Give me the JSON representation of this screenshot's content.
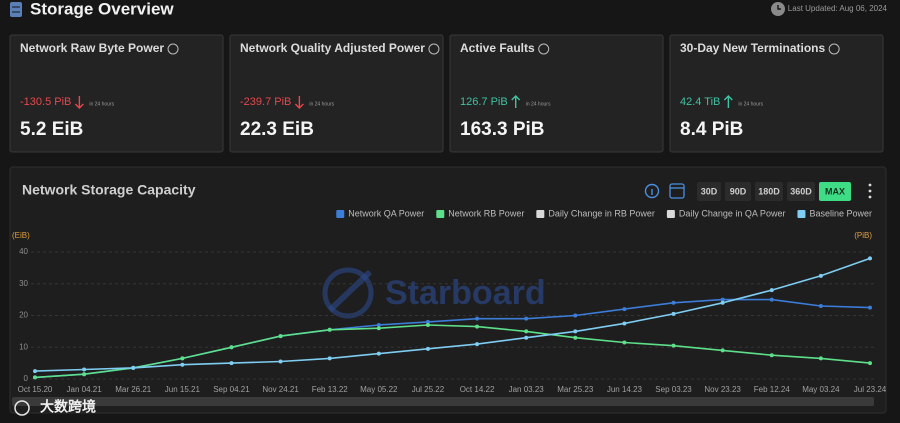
{
  "header": {
    "title": "Storage Overview",
    "last_updated": "Last Updated: Aug 06, 2024"
  },
  "cards": [
    {
      "title": "Network Raw Byte Power",
      "change": "-130.5 PiB",
      "direction": "down",
      "change_note": "in 24 hours",
      "value": "5.2 EiB"
    },
    {
      "title": "Network Quality Adjusted Power",
      "change": "-239.7 PiB",
      "direction": "down",
      "change_note": "in 24 hours",
      "value": "22.3 EiB"
    },
    {
      "title": "Active Faults",
      "change": "126.7 PiB",
      "direction": "up",
      "change_note": "in 24 hours",
      "value": "163.3 PiB"
    },
    {
      "title": "30-Day New Terminations",
      "change": "42.4 TiB",
      "direction": "up",
      "change_note": "in 24 hours",
      "value": "8.4 PiB"
    }
  ],
  "chart_data": {
    "type": "line",
    "title": "Network Storage Capacity",
    "range_buttons": [
      "30D",
      "90D",
      "180D",
      "360D",
      "MAX"
    ],
    "active_range": "MAX",
    "y_label": "(EiB)",
    "y2_label": "(PiB)",
    "watermark": "Starboard",
    "categories": [
      "Oct 15.20",
      "Jan 04.21",
      "Mar 26.21",
      "Jun 15.21",
      "Sep 04.21",
      "Nov 24.21",
      "Feb 13.22",
      "May 05.22",
      "Jul 25.22",
      "Oct 14.22",
      "Jan 03.23",
      "Mar 25.23",
      "Jun 14.23",
      "Sep 03.23",
      "Nov 23.23",
      "Feb 12.24",
      "May 03.24",
      "Jul 23.24"
    ],
    "series": [
      {
        "name": "Network QA Power",
        "color": "#3b7dd8",
        "values": [
          0.5,
          1.5,
          3.5,
          6.5,
          10,
          13.5,
          15.5,
          17,
          18,
          19,
          19,
          20,
          22,
          24,
          25,
          25,
          23,
          22.5
        ]
      },
      {
        "name": "Network RB Power",
        "color": "#5ee08a",
        "values": [
          0.5,
          1.5,
          3.5,
          6.5,
          10,
          13.5,
          15.5,
          16,
          17,
          16.5,
          15,
          13,
          11.5,
          10.5,
          9,
          7.5,
          6.5,
          5
        ]
      },
      {
        "name": "Daily Change in RB Power",
        "color": "#d9d9d9",
        "values": [
          null,
          null,
          null,
          null,
          null,
          null,
          null,
          null,
          null,
          null,
          null,
          null,
          null,
          null,
          null,
          null,
          null,
          null
        ]
      },
      {
        "name": "Daily Change in QA Power",
        "color": "#d9d9d9",
        "values": [
          null,
          null,
          null,
          null,
          null,
          null,
          null,
          null,
          null,
          null,
          null,
          null,
          null,
          null,
          null,
          null,
          null,
          null
        ]
      },
      {
        "name": "Baseline Power",
        "color": "#7fcdf2",
        "values": [
          2.5,
          3,
          3.5,
          4.5,
          5,
          5.5,
          6.5,
          8,
          9.5,
          11,
          13,
          15,
          17.5,
          20.5,
          24,
          28,
          32.5,
          38
        ]
      }
    ],
    "ylim": [
      0,
      40
    ],
    "yticks": [
      0,
      10,
      20,
      30,
      40
    ],
    "grid": true
  },
  "footer": {
    "logo_text": "大数跨境"
  }
}
